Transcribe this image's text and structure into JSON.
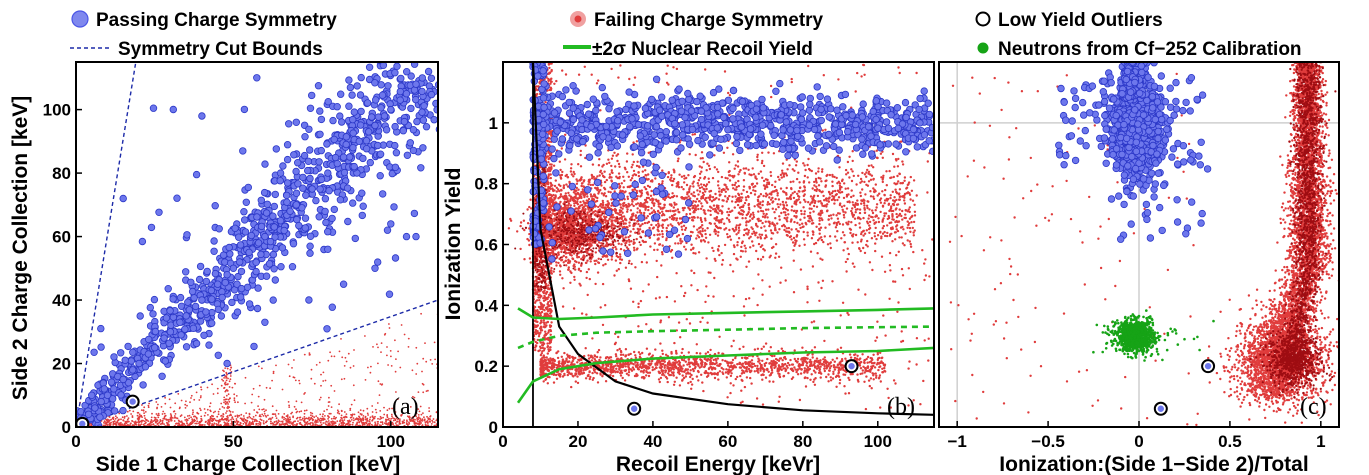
{
  "chart_data": [
    {
      "type": "scatter",
      "panel_label": "(a)",
      "xlabel": "Side 1 Charge Collection [keV]",
      "ylabel": "Side 2 Charge Collection [keV]",
      "xlim": [
        0,
        115
      ],
      "ylim": [
        0,
        115
      ],
      "xticks": [
        "0",
        "50",
        "100"
      ],
      "yticks": [
        "0",
        "20",
        "40",
        "60",
        "80",
        "100"
      ],
      "legend": [
        {
          "label": "Passing Charge Symmetry",
          "marker": "blue-circle"
        },
        {
          "label": "Symmetry Cut Bounds",
          "marker": "blue-dashed-line"
        }
      ],
      "cut_bounds": [
        {
          "x": [
            0,
            19
          ],
          "y": [
            0,
            115
          ]
        },
        {
          "x": [
            0,
            115
          ],
          "y": [
            0,
            40
          ]
        }
      ],
      "passing_series": {
        "x": [
          2,
          4,
          6,
          8,
          10,
          12,
          15,
          18,
          20,
          23,
          25,
          28,
          30,
          33,
          35,
          38,
          40,
          43,
          45,
          48,
          50,
          52,
          55,
          58,
          60,
          63,
          65,
          68,
          70,
          73,
          75,
          78,
          80,
          83,
          85,
          88,
          90,
          93,
          95,
          98,
          100,
          103,
          105,
          108,
          110,
          112,
          40,
          53,
          65,
          70,
          80,
          100,
          108,
          60,
          74,
          85,
          95,
          105,
          48,
          15,
          9,
          5
        ],
        "y": [
          2,
          4,
          6,
          8,
          10,
          12,
          15,
          18,
          20,
          23,
          25,
          28,
          30,
          33,
          35,
          38,
          40,
          43,
          45,
          48,
          50,
          52,
          55,
          58,
          60,
          63,
          65,
          68,
          70,
          73,
          75,
          78,
          80,
          83,
          85,
          88,
          90,
          93,
          95,
          98,
          100,
          103,
          105,
          108,
          110,
          112,
          98,
          87,
          80,
          96,
          56,
          64,
          60,
          33,
          40,
          45,
          50,
          60,
          20,
          72,
          12,
          10
        ]
      },
      "outliers": [
        {
          "x": 18,
          "y": 8
        },
        {
          "x": 2,
          "y": 1
        }
      ]
    },
    {
      "type": "scatter",
      "panel_label": "(b)",
      "xlabel": "Recoil Energy [keVr]",
      "ylabel": "Ionization Yield",
      "xlim": [
        0,
        115
      ],
      "ylim": [
        0,
        1.2
      ],
      "xticks": [
        "0",
        "20",
        "40",
        "60",
        "80",
        "100"
      ],
      "yticks": [
        "0",
        "0.2",
        "0.4",
        "0.6",
        "0.8",
        "1"
      ],
      "legend": [
        {
          "label": "Failing Charge Symmetry",
          "marker": "red-dot"
        },
        {
          "label": "±2σ Nuclear Recoil Yield",
          "marker": "green-line"
        }
      ],
      "threshold_keVr": 8,
      "nr_band": {
        "x": [
          4,
          8,
          15,
          25,
          40,
          60,
          80,
          100,
          115
        ],
        "upper": [
          0.39,
          0.36,
          0.355,
          0.36,
          0.37,
          0.375,
          0.38,
          0.385,
          0.39
        ],
        "mean": [
          0.26,
          0.28,
          0.3,
          0.31,
          0.315,
          0.32,
          0.325,
          0.328,
          0.33
        ],
        "lower": [
          0.08,
          0.15,
          0.19,
          0.21,
          0.225,
          0.235,
          0.245,
          0.25,
          0.26
        ]
      },
      "threshold_curve": {
        "x": [
          8,
          10,
          15,
          20,
          30,
          40,
          60,
          80,
          100,
          115
        ],
        "y": [
          1.2,
          0.65,
          0.33,
          0.24,
          0.15,
          0.11,
          0.075,
          0.055,
          0.045,
          0.04
        ]
      },
      "outliers": [
        {
          "x": 35,
          "y": 0.06
        },
        {
          "x": 93,
          "y": 0.2
        }
      ]
    },
    {
      "type": "scatter",
      "panel_label": "(c)",
      "xlabel": "Ionization:(Side 1−Side 2)/Total",
      "ylabel": "",
      "xlim": [
        -1.1,
        1.1
      ],
      "ylim": [
        0,
        1.2
      ],
      "xticks": [
        "−1",
        "−0.5",
        "0",
        "0.5",
        "1"
      ],
      "legend": [
        {
          "label": "Low Yield Outliers",
          "marker": "open-circle"
        },
        {
          "label": "Neutrons from Cf−252 Calibration",
          "marker": "green-dot"
        }
      ],
      "guide_lines": {
        "x": [
          -1,
          0
        ],
        "y": [
          1
        ]
      },
      "outliers": [
        {
          "x": 0.38,
          "y": 0.2
        },
        {
          "x": 0.12,
          "y": 0.06
        }
      ],
      "neutron_cluster_center": {
        "x": -0.02,
        "y": 0.3
      }
    }
  ],
  "colors": {
    "passing": "#4a55e6",
    "failing": "#e03c3c",
    "failing_dense": "#9e0d12",
    "nr_band": "#22bb22",
    "neutrons": "#16a316",
    "cut": "#1c2aa8"
  }
}
